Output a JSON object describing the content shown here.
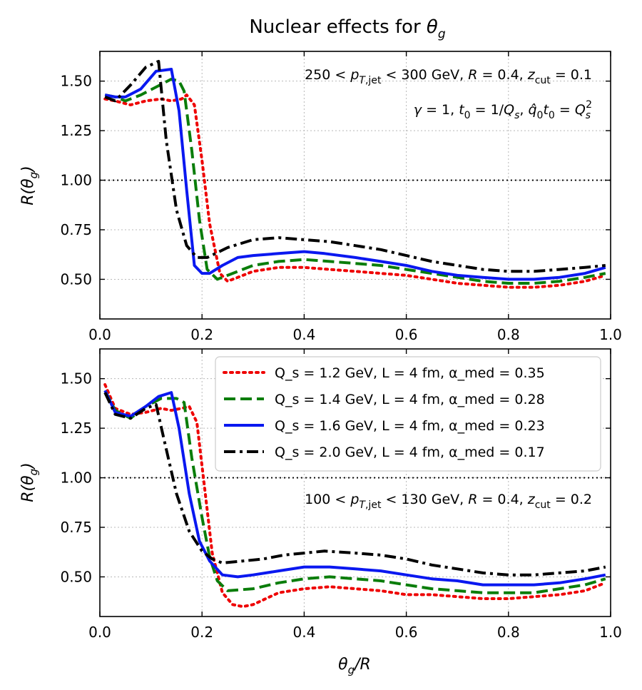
{
  "figure_title": "Nuclear effects for θ_g",
  "chart_data": [
    {
      "type": "line",
      "panel": "top",
      "title": "Nuclear effects for θ_g",
      "xlabel": "θ_g/R",
      "ylabel": "R(θ_g)",
      "xlim": [
        0.0,
        1.0
      ],
      "ylim": [
        0.3,
        1.65
      ],
      "xticks": [
        0.0,
        0.2,
        0.4,
        0.6,
        0.8,
        1.0
      ],
      "xtick_labels": [
        "0.0",
        "0.2",
        "0.4",
        "0.6",
        "0.8",
        "1.0"
      ],
      "yticks": [
        0.5,
        0.75,
        1.0,
        1.25,
        1.5
      ],
      "ytick_labels": [
        "0.50",
        "0.75",
        "1.00",
        "1.25",
        "1.50"
      ],
      "reference_line": 1.0,
      "grid": true,
      "annotations": [
        "250 < p_T,jet < 300 GeV, R = 0.4, z_cut = 0.1",
        "γ = 1, t₀ = 1/Q_s, q̂₀t₀ = Q_s²"
      ],
      "series": [
        {
          "name": "Q_s = 1.2 GeV, L = 4 fm, α_med = 0.35",
          "color": "#ee0000",
          "style": "dotted",
          "points": [
            [
              0.01,
              1.41
            ],
            [
              0.03,
              1.4
            ],
            [
              0.06,
              1.38
            ],
            [
              0.09,
              1.4
            ],
            [
              0.12,
              1.41
            ],
            [
              0.14,
              1.4
            ],
            [
              0.16,
              1.41
            ],
            [
              0.17,
              1.43
            ],
            [
              0.185,
              1.38
            ],
            [
              0.2,
              1.1
            ],
            [
              0.215,
              0.78
            ],
            [
              0.235,
              0.53
            ],
            [
              0.25,
              0.49
            ],
            [
              0.27,
              0.51
            ],
            [
              0.3,
              0.54
            ],
            [
              0.35,
              0.56
            ],
            [
              0.4,
              0.56
            ],
            [
              0.45,
              0.55
            ],
            [
              0.5,
              0.54
            ],
            [
              0.55,
              0.53
            ],
            [
              0.6,
              0.52
            ],
            [
              0.65,
              0.5
            ],
            [
              0.7,
              0.48
            ],
            [
              0.75,
              0.47
            ],
            [
              0.8,
              0.46
            ],
            [
              0.85,
              0.46
            ],
            [
              0.9,
              0.47
            ],
            [
              0.95,
              0.49
            ],
            [
              0.99,
              0.52
            ]
          ]
        },
        {
          "name": "Q_s = 1.4 GeV, L = 4 fm, α_med = 0.28",
          "color": "#0a7d0a",
          "style": "dashed",
          "points": [
            [
              0.01,
              1.43
            ],
            [
              0.03,
              1.42
            ],
            [
              0.05,
              1.4
            ],
            [
              0.08,
              1.43
            ],
            [
              0.11,
              1.47
            ],
            [
              0.14,
              1.51
            ],
            [
              0.155,
              1.5
            ],
            [
              0.165,
              1.45
            ],
            [
              0.18,
              1.15
            ],
            [
              0.195,
              0.8
            ],
            [
              0.21,
              0.55
            ],
            [
              0.23,
              0.5
            ],
            [
              0.26,
              0.53
            ],
            [
              0.3,
              0.57
            ],
            [
              0.35,
              0.59
            ],
            [
              0.4,
              0.6
            ],
            [
              0.45,
              0.59
            ],
            [
              0.5,
              0.58
            ],
            [
              0.55,
              0.57
            ],
            [
              0.6,
              0.55
            ],
            [
              0.65,
              0.53
            ],
            [
              0.7,
              0.51
            ],
            [
              0.75,
              0.49
            ],
            [
              0.8,
              0.48
            ],
            [
              0.85,
              0.48
            ],
            [
              0.9,
              0.49
            ],
            [
              0.95,
              0.51
            ],
            [
              0.99,
              0.53
            ]
          ]
        },
        {
          "name": "Q_s = 1.6 GeV, L = 4 fm, α_med = 0.23",
          "color": "#0a18f0",
          "style": "solid",
          "points": [
            [
              0.01,
              1.43
            ],
            [
              0.03,
              1.42
            ],
            [
              0.05,
              1.42
            ],
            [
              0.08,
              1.46
            ],
            [
              0.11,
              1.55
            ],
            [
              0.14,
              1.56
            ],
            [
              0.155,
              1.35
            ],
            [
              0.17,
              0.95
            ],
            [
              0.185,
              0.57
            ],
            [
              0.2,
              0.53
            ],
            [
              0.215,
              0.53
            ],
            [
              0.24,
              0.57
            ],
            [
              0.27,
              0.61
            ],
            [
              0.3,
              0.62
            ],
            [
              0.35,
              0.63
            ],
            [
              0.4,
              0.64
            ],
            [
              0.44,
              0.63
            ],
            [
              0.5,
              0.61
            ],
            [
              0.55,
              0.59
            ],
            [
              0.6,
              0.57
            ],
            [
              0.65,
              0.54
            ],
            [
              0.7,
              0.52
            ],
            [
              0.75,
              0.51
            ],
            [
              0.8,
              0.5
            ],
            [
              0.85,
              0.5
            ],
            [
              0.9,
              0.51
            ],
            [
              0.95,
              0.53
            ],
            [
              0.99,
              0.56
            ]
          ]
        },
        {
          "name": "Q_s = 2.0 GeV, L = 4 fm, α_med = 0.17",
          "color": "#000000",
          "style": "dashdot",
          "points": [
            [
              0.01,
              1.42
            ],
            [
              0.03,
              1.4
            ],
            [
              0.06,
              1.48
            ],
            [
              0.09,
              1.57
            ],
            [
              0.115,
              1.6
            ],
            [
              0.13,
              1.2
            ],
            [
              0.15,
              0.85
            ],
            [
              0.17,
              0.67
            ],
            [
              0.19,
              0.61
            ],
            [
              0.21,
              0.61
            ],
            [
              0.25,
              0.66
            ],
            [
              0.3,
              0.7
            ],
            [
              0.35,
              0.71
            ],
            [
              0.4,
              0.7
            ],
            [
              0.45,
              0.69
            ],
            [
              0.5,
              0.67
            ],
            [
              0.55,
              0.65
            ],
            [
              0.6,
              0.62
            ],
            [
              0.65,
              0.59
            ],
            [
              0.7,
              0.57
            ],
            [
              0.75,
              0.55
            ],
            [
              0.8,
              0.54
            ],
            [
              0.85,
              0.54
            ],
            [
              0.9,
              0.55
            ],
            [
              0.95,
              0.56
            ],
            [
              0.99,
              0.57
            ]
          ]
        }
      ]
    },
    {
      "type": "line",
      "panel": "bottom",
      "xlabel": "θ_g/R",
      "ylabel": "R(θ_g)",
      "xlim": [
        0.0,
        1.0
      ],
      "ylim": [
        0.3,
        1.65
      ],
      "xticks": [
        0.0,
        0.2,
        0.4,
        0.6,
        0.8,
        1.0
      ],
      "xtick_labels": [
        "0.0",
        "0.2",
        "0.4",
        "0.6",
        "0.8",
        "1.0"
      ],
      "yticks": [
        0.5,
        0.75,
        1.0,
        1.25,
        1.5
      ],
      "ytick_labels": [
        "0.50",
        "0.75",
        "1.00",
        "1.25",
        "1.50"
      ],
      "reference_line": 1.0,
      "grid": true,
      "legend_position": "top-right",
      "annotations": [
        "100 < p_T,jet < 130 GeV, R = 0.4, z_cut = 0.2"
      ],
      "series": [
        {
          "name": "Q_s = 1.2 GeV, L = 4 fm, α_med = 0.35",
          "color": "#ee0000",
          "style": "dotted",
          "points": [
            [
              0.01,
              1.47
            ],
            [
              0.03,
              1.35
            ],
            [
              0.06,
              1.32
            ],
            [
              0.09,
              1.33
            ],
            [
              0.12,
              1.35
            ],
            [
              0.14,
              1.34
            ],
            [
              0.16,
              1.35
            ],
            [
              0.175,
              1.36
            ],
            [
              0.19,
              1.28
            ],
            [
              0.205,
              0.95
            ],
            [
              0.22,
              0.62
            ],
            [
              0.24,
              0.42
            ],
            [
              0.26,
              0.36
            ],
            [
              0.28,
              0.35
            ],
            [
              0.3,
              0.36
            ],
            [
              0.35,
              0.42
            ],
            [
              0.4,
              0.44
            ],
            [
              0.45,
              0.45
            ],
            [
              0.5,
              0.44
            ],
            [
              0.55,
              0.43
            ],
            [
              0.6,
              0.41
            ],
            [
              0.65,
              0.41
            ],
            [
              0.7,
              0.4
            ],
            [
              0.75,
              0.39
            ],
            [
              0.8,
              0.39
            ],
            [
              0.85,
              0.4
            ],
            [
              0.9,
              0.41
            ],
            [
              0.95,
              0.43
            ],
            [
              0.99,
              0.47
            ]
          ]
        },
        {
          "name": "Q_s = 1.4 GeV, L = 4 fm, α_med = 0.28",
          "color": "#0a7d0a",
          "style": "dashed",
          "points": [
            [
              0.01,
              1.44
            ],
            [
              0.03,
              1.34
            ],
            [
              0.06,
              1.3
            ],
            [
              0.09,
              1.36
            ],
            [
              0.12,
              1.4
            ],
            [
              0.15,
              1.4
            ],
            [
              0.165,
              1.38
            ],
            [
              0.18,
              1.1
            ],
            [
              0.2,
              0.8
            ],
            [
              0.215,
              0.6
            ],
            [
              0.23,
              0.48
            ],
            [
              0.25,
              0.43
            ],
            [
              0.3,
              0.44
            ],
            [
              0.35,
              0.47
            ],
            [
              0.4,
              0.49
            ],
            [
              0.45,
              0.5
            ],
            [
              0.5,
              0.49
            ],
            [
              0.55,
              0.48
            ],
            [
              0.6,
              0.46
            ],
            [
              0.65,
              0.44
            ],
            [
              0.7,
              0.43
            ],
            [
              0.75,
              0.42
            ],
            [
              0.8,
              0.42
            ],
            [
              0.85,
              0.42
            ],
            [
              0.9,
              0.44
            ],
            [
              0.95,
              0.46
            ],
            [
              0.99,
              0.49
            ]
          ]
        },
        {
          "name": "Q_s = 1.6 GeV, L = 4 fm, α_med = 0.23",
          "color": "#0a18f0",
          "style": "solid",
          "points": [
            [
              0.01,
              1.44
            ],
            [
              0.03,
              1.33
            ],
            [
              0.06,
              1.31
            ],
            [
              0.09,
              1.36
            ],
            [
              0.115,
              1.41
            ],
            [
              0.14,
              1.43
            ],
            [
              0.155,
              1.25
            ],
            [
              0.175,
              0.92
            ],
            [
              0.195,
              0.68
            ],
            [
              0.215,
              0.58
            ],
            [
              0.24,
              0.51
            ],
            [
              0.27,
              0.5
            ],
            [
              0.3,
              0.51
            ],
            [
              0.35,
              0.53
            ],
            [
              0.4,
              0.55
            ],
            [
              0.45,
              0.55
            ],
            [
              0.5,
              0.54
            ],
            [
              0.55,
              0.53
            ],
            [
              0.6,
              0.51
            ],
            [
              0.65,
              0.49
            ],
            [
              0.7,
              0.48
            ],
            [
              0.75,
              0.46
            ],
            [
              0.8,
              0.46
            ],
            [
              0.85,
              0.46
            ],
            [
              0.9,
              0.47
            ],
            [
              0.95,
              0.49
            ],
            [
              0.99,
              0.51
            ]
          ]
        },
        {
          "name": "Q_s = 2.0 GeV, L = 4 fm, α_med = 0.17",
          "color": "#000000",
          "style": "dashdot",
          "points": [
            [
              0.01,
              1.43
            ],
            [
              0.03,
              1.32
            ],
            [
              0.06,
              1.3
            ],
            [
              0.09,
              1.35
            ],
            [
              0.11,
              1.37
            ],
            [
              0.125,
              1.2
            ],
            [
              0.15,
              0.92
            ],
            [
              0.175,
              0.73
            ],
            [
              0.2,
              0.63
            ],
            [
              0.22,
              0.59
            ],
            [
              0.24,
              0.57
            ],
            [
              0.28,
              0.58
            ],
            [
              0.32,
              0.59
            ],
            [
              0.36,
              0.61
            ],
            [
              0.4,
              0.62
            ],
            [
              0.44,
              0.63
            ],
            [
              0.5,
              0.62
            ],
            [
              0.55,
              0.61
            ],
            [
              0.6,
              0.59
            ],
            [
              0.65,
              0.56
            ],
            [
              0.7,
              0.54
            ],
            [
              0.75,
              0.52
            ],
            [
              0.8,
              0.51
            ],
            [
              0.85,
              0.51
            ],
            [
              0.9,
              0.52
            ],
            [
              0.95,
              0.53
            ],
            [
              0.99,
              0.55
            ]
          ]
        }
      ]
    }
  ]
}
